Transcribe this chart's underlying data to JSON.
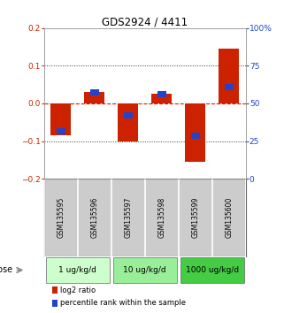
{
  "title": "GDS2924 / 4411",
  "samples": [
    "GSM135595",
    "GSM135596",
    "GSM135597",
    "GSM135598",
    "GSM135599",
    "GSM135600"
  ],
  "log2_ratio": [
    -0.085,
    0.03,
    -0.1,
    0.025,
    -0.155,
    0.145
  ],
  "percentile_rank": [
    31.5,
    57.5,
    42.0,
    56.0,
    28.5,
    61.0
  ],
  "bar_width": 0.6,
  "ylim_left": [
    -0.2,
    0.2
  ],
  "ylim_right": [
    0,
    100
  ],
  "yticks_left": [
    -0.2,
    -0.1,
    0,
    0.1,
    0.2
  ],
  "yticks_right": [
    0,
    25,
    50,
    75,
    100
  ],
  "ytick_labels_right": [
    "0",
    "25",
    "50",
    "75",
    "100%"
  ],
  "doses": [
    {
      "label": "1 ug/kg/d",
      "color": "#ccffcc"
    },
    {
      "label": "10 ug/kg/d",
      "color": "#99ee99"
    },
    {
      "label": "1000 ug/kg/d",
      "color": "#44cc44"
    }
  ],
  "red_color": "#cc2200",
  "blue_color": "#2244cc",
  "grid_color": "#555555",
  "bg_color": "#ffffff",
  "sample_bg": "#cccccc",
  "dose_label": "dose",
  "legend_red": "log2 ratio",
  "legend_blue": "percentile rank within the sample"
}
